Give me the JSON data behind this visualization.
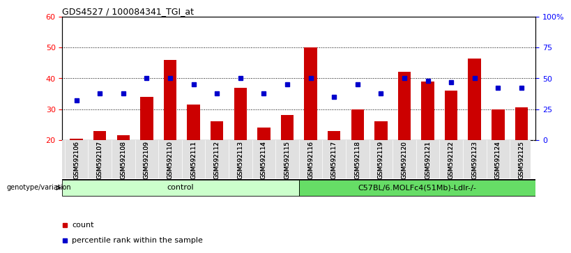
{
  "title": "GDS4527 / 100084341_TGI_at",
  "samples": [
    "GSM592106",
    "GSM592107",
    "GSM592108",
    "GSM592109",
    "GSM592110",
    "GSM592111",
    "GSM592112",
    "GSM592113",
    "GSM592114",
    "GSM592115",
    "GSM592116",
    "GSM592117",
    "GSM592118",
    "GSM592119",
    "GSM592120",
    "GSM592121",
    "GSM592122",
    "GSM592123",
    "GSM592124",
    "GSM592125"
  ],
  "counts": [
    20.5,
    23,
    21.5,
    34,
    46,
    31.5,
    26,
    37,
    24,
    28,
    50,
    23,
    30,
    26,
    42,
    39,
    36,
    46.5,
    30,
    30.5
  ],
  "pct_right": [
    32,
    37.5,
    37.5,
    50,
    50,
    45,
    37.5,
    50,
    37.5,
    45,
    50,
    35,
    45,
    37.5,
    50,
    48,
    47,
    50,
    42,
    42
  ],
  "group1_label": "control",
  "group2_label": "C57BL/6.MOLFc4(51Mb)-Ldlr-/-",
  "group1_color": "#ccffcc",
  "group2_color": "#66dd66",
  "bar_color": "#cc0000",
  "dot_color": "#0000cc",
  "ylim_left": [
    20,
    60
  ],
  "ylim_right": [
    0,
    100
  ],
  "yticks_left": [
    20,
    30,
    40,
    50,
    60
  ],
  "ytick_labels_right": [
    "0",
    "25",
    "50",
    "75",
    "100%"
  ],
  "grid_values": [
    30,
    40,
    50
  ],
  "bg_color": "#ffffff",
  "legend_count_label": "count",
  "legend_pct_label": "percentile rank within the sample",
  "genotype_label": "genotype/variation"
}
